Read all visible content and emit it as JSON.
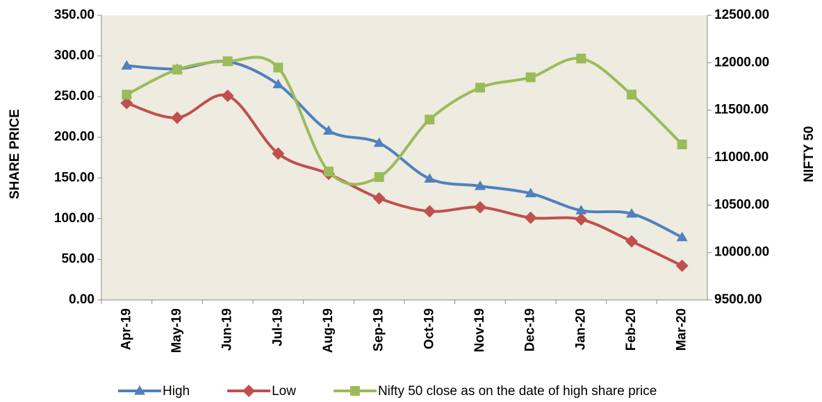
{
  "chart_data": {
    "type": "line",
    "categories": [
      "Apr-19",
      "May-19",
      "Jun-19",
      "Jul-19",
      "Aug-19",
      "Sep-19",
      "Oct-19",
      "Nov-19",
      "Dec-19",
      "Jan-20",
      "Feb-20",
      "Mar-20"
    ],
    "series": [
      {
        "name": "High",
        "color": "#4f81bd",
        "marker": "triangle",
        "values": [
          288,
          284,
          293,
          265,
          208,
          193,
          149,
          140,
          131,
          110,
          106,
          77
        ]
      },
      {
        "name": "Low",
        "color": "#c0504d",
        "marker": "diamond",
        "values": [
          242,
          224,
          251,
          180,
          155,
          125,
          109,
          114,
          101,
          99,
          72,
          42
        ]
      },
      {
        "name": "Nifty 50 close as on the date of high share price",
        "color": "#9bbb59",
        "marker": "square",
        "axis": "y2",
        "values": [
          11664,
          11927,
          12015,
          11949,
          10854,
          10795,
          11401,
          11737,
          11846,
          12044,
          11664,
          11139
        ]
      }
    ],
    "ylabel": "SHARE PRICE",
    "y2label": "NIFTY 50",
    "ylim": [
      0,
      350
    ],
    "yticks": [
      {
        "value": 0,
        "label": "0.00"
      },
      {
        "value": 50,
        "label": "50.00"
      },
      {
        "value": 100,
        "label": "100.00"
      },
      {
        "value": 150,
        "label": "150.00"
      },
      {
        "value": 200,
        "label": "200.00"
      },
      {
        "value": 250,
        "label": "250.00"
      },
      {
        "value": 300,
        "label": "300.00"
      },
      {
        "value": 350,
        "label": "350.00"
      }
    ],
    "y2lim": [
      9500,
      12500
    ],
    "y2ticks": [
      {
        "value": 9500,
        "label": "9500.00"
      },
      {
        "value": 10000,
        "label": "10000.00"
      },
      {
        "value": 10500,
        "label": "10500.00"
      },
      {
        "value": 11000,
        "label": "11000.00"
      },
      {
        "value": 11500,
        "label": "11500.00"
      },
      {
        "value": 12000,
        "label": "12000.00"
      },
      {
        "value": 12500,
        "label": "12500.00"
      }
    ],
    "plot_background": "#eeebe0",
    "legend": "bottom"
  }
}
